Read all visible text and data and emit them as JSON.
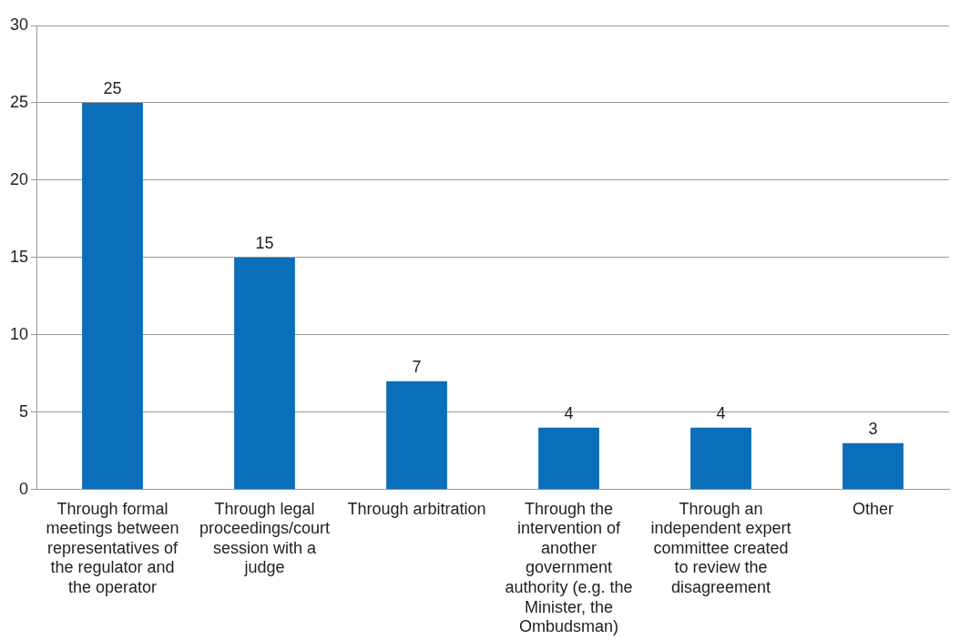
{
  "chart_data": {
    "type": "bar",
    "categories": [
      "Through formal meetings between representatives of the regulator and the operator",
      "Through legal proceedings/court session with a judge",
      "Through arbitration",
      "Through the intervention of another government authority (e.g. the Minister, the Ombudsman)",
      "Through an independent expert committee created to review the disagreement",
      "Other"
    ],
    "values": [
      25,
      15,
      7,
      4,
      4,
      3
    ],
    "color": "#0b6eb8",
    "ylim": [
      0,
      30
    ],
    "yticks": [
      0,
      5,
      10,
      15,
      20,
      25,
      30
    ],
    "grid": "y",
    "legend": false,
    "data_labels": true
  }
}
